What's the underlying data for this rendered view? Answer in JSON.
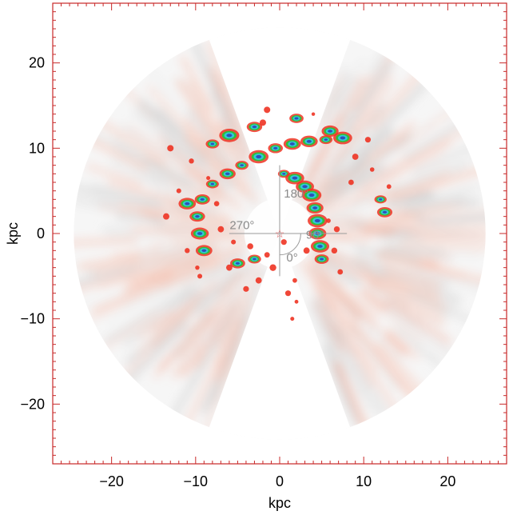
{
  "chart_data": {
    "type": "heatmap",
    "title": "",
    "xlabel": "kpc",
    "ylabel": "kpc",
    "xlim": [
      -27,
      27
    ],
    "ylim": [
      -27,
      27
    ],
    "x_ticks": [
      -20,
      -10,
      0,
      10,
      20
    ],
    "y_ticks": [
      -20,
      -10,
      0,
      10,
      20
    ],
    "x_tick_labels": [
      "−20",
      "−10",
      "0",
      "10",
      "20"
    ],
    "y_tick_labels": [
      "−20",
      "−10",
      "0",
      "10",
      "20"
    ],
    "map_radius": 24.5,
    "empty_wedges_galactic_longitude_deg": [
      [
        -20,
        20
      ],
      [
        160,
        200
      ]
    ],
    "angle_labels": [
      {
        "text": "0°",
        "angle_deg": 0
      },
      {
        "text": "90°",
        "angle_deg": 90
      },
      {
        "text": "180°",
        "angle_deg": 180
      },
      {
        "text": "270°",
        "angle_deg": 270
      }
    ],
    "center_marker": "star",
    "colors": {
      "frame": "#c82828",
      "low_gray": "#d6d6d6",
      "mid_pink": "#f7cdbf",
      "red": "#ee3322",
      "green": "#2fbf3a",
      "cyan": "#30c8d8",
      "blue": "#2f4fb8"
    },
    "features": {
      "arm_points": [
        [
          -9.0,
          -2.0
        ],
        [
          -9.5,
          0.0
        ],
        [
          -9.8,
          2.0
        ],
        [
          -9.2,
          4.0
        ],
        [
          -8.0,
          5.8
        ],
        [
          -6.2,
          7.0
        ],
        [
          -4.5,
          8.0
        ],
        [
          -2.5,
          9.0
        ],
        [
          -0.5,
          10.0
        ],
        [
          1.5,
          10.5
        ],
        [
          3.5,
          10.8
        ],
        [
          5.5,
          11.0
        ],
        [
          7.5,
          11.2
        ],
        [
          0.5,
          7.0
        ],
        [
          1.8,
          6.5
        ],
        [
          3.0,
          5.5
        ],
        [
          3.8,
          4.5
        ],
        [
          4.2,
          3.0
        ],
        [
          4.5,
          1.5
        ],
        [
          4.5,
          0.0
        ],
        [
          4.8,
          -1.5
        ],
        [
          5.0,
          -3.0
        ],
        [
          -6.0,
          11.5
        ],
        [
          -3.0,
          12.5
        ],
        [
          2.0,
          13.5
        ],
        [
          6.0,
          12.0
        ],
        [
          12.0,
          4.0
        ],
        [
          12.5,
          2.5
        ],
        [
          -3.0,
          -3.0
        ],
        [
          -5.0,
          -3.5
        ],
        [
          -11.0,
          3.5
        ],
        [
          -8.0,
          10.5
        ]
      ],
      "red_dots": [
        [
          -9.5,
          -5.0
        ],
        [
          -11.0,
          -2.0
        ],
        [
          -12.0,
          5.0
        ],
        [
          -13.0,
          10.0
        ],
        [
          -10.5,
          8.5
        ],
        [
          -2.5,
          -5.5
        ],
        [
          -4.0,
          -6.5
        ],
        [
          -6.0,
          -4.0
        ],
        [
          -1.5,
          -2.5
        ],
        [
          -0.8,
          -4.0
        ],
        [
          2.0,
          -8.0
        ],
        [
          1.5,
          -10.0
        ],
        [
          1.0,
          -7.0
        ],
        [
          6.5,
          -2.0
        ],
        [
          7.2,
          -4.5
        ],
        [
          6.8,
          0.5
        ],
        [
          8.5,
          6.0
        ],
        [
          9.0,
          9.0
        ],
        [
          10.5,
          11.0
        ],
        [
          11.0,
          7.5
        ],
        [
          13.0,
          5.5
        ],
        [
          -1.5,
          14.5
        ],
        [
          -2.0,
          13.0
        ],
        [
          4.0,
          14.0
        ],
        [
          -13.5,
          2.0
        ],
        [
          -9.8,
          -4.0
        ],
        [
          -7.0,
          0.5
        ],
        [
          -5.5,
          -1.0
        ],
        [
          -3.5,
          -1.5
        ],
        [
          0.5,
          -1.0
        ],
        [
          1.8,
          -5.5
        ],
        [
          3.2,
          -2.0
        ],
        [
          5.8,
          1.5
        ],
        [
          -8.5,
          6.5
        ],
        [
          -7.5,
          3.5
        ]
      ]
    }
  }
}
